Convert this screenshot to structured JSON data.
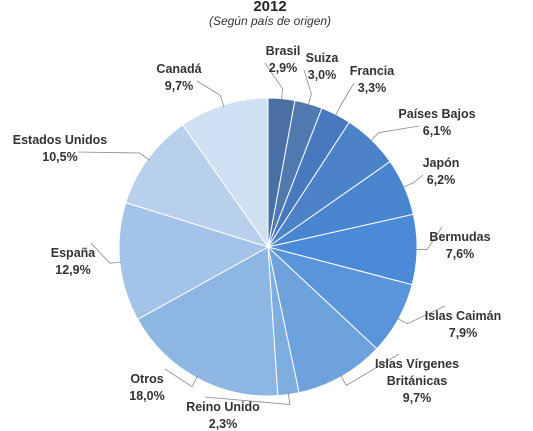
{
  "chart_data": {
    "type": "pie",
    "title": "2012",
    "subtitle": "(Según país de origen)",
    "slices": [
      {
        "name": "Brasil",
        "value_label": "2,9%",
        "value": 2.9,
        "color": "#4a6fa4"
      },
      {
        "name": "Suiza",
        "value_label": "3,0%",
        "value": 3.0,
        "color": "#5079b0"
      },
      {
        "name": "Francia",
        "value_label": "3,3%",
        "value": 3.3,
        "color": "#4878bd"
      },
      {
        "name": "Países Bajos",
        "value_label": "6,1%",
        "value": 6.1,
        "color": "#4b82c8"
      },
      {
        "name": "Japón",
        "value_label": "6,2%",
        "value": 6.2,
        "color": "#4a86cf"
      },
      {
        "name": "Bermudas",
        "value_label": "7,6%",
        "value": 7.6,
        "color": "#4a8ad8"
      },
      {
        "name": "Islas Caimán",
        "value_label": "7,9%",
        "value": 7.9,
        "color": "#5a95dc"
      },
      {
        "name": "Islas Vírgenes Británicas",
        "value_label": "9,7%",
        "value": 9.7,
        "color": "#6ea2dd"
      },
      {
        "name": "Reino Unido",
        "value_label": "2,3%",
        "value": 2.3,
        "color": "#7eaddf"
      },
      {
        "name": "Otros",
        "value_label": "18,0%",
        "value": 18.0,
        "color": "#8eb6e2"
      },
      {
        "name": "España",
        "value_label": "12,9%",
        "value": 12.9,
        "color": "#a3c3e8"
      },
      {
        "name": "Estados Unidos",
        "value_label": "10,5%",
        "value": 10.5,
        "color": "#b8d0ec"
      },
      {
        "name": "Canadá",
        "value_label": "9,7%",
        "value": 9.7,
        "color": "#d0e0f2"
      }
    ]
  }
}
